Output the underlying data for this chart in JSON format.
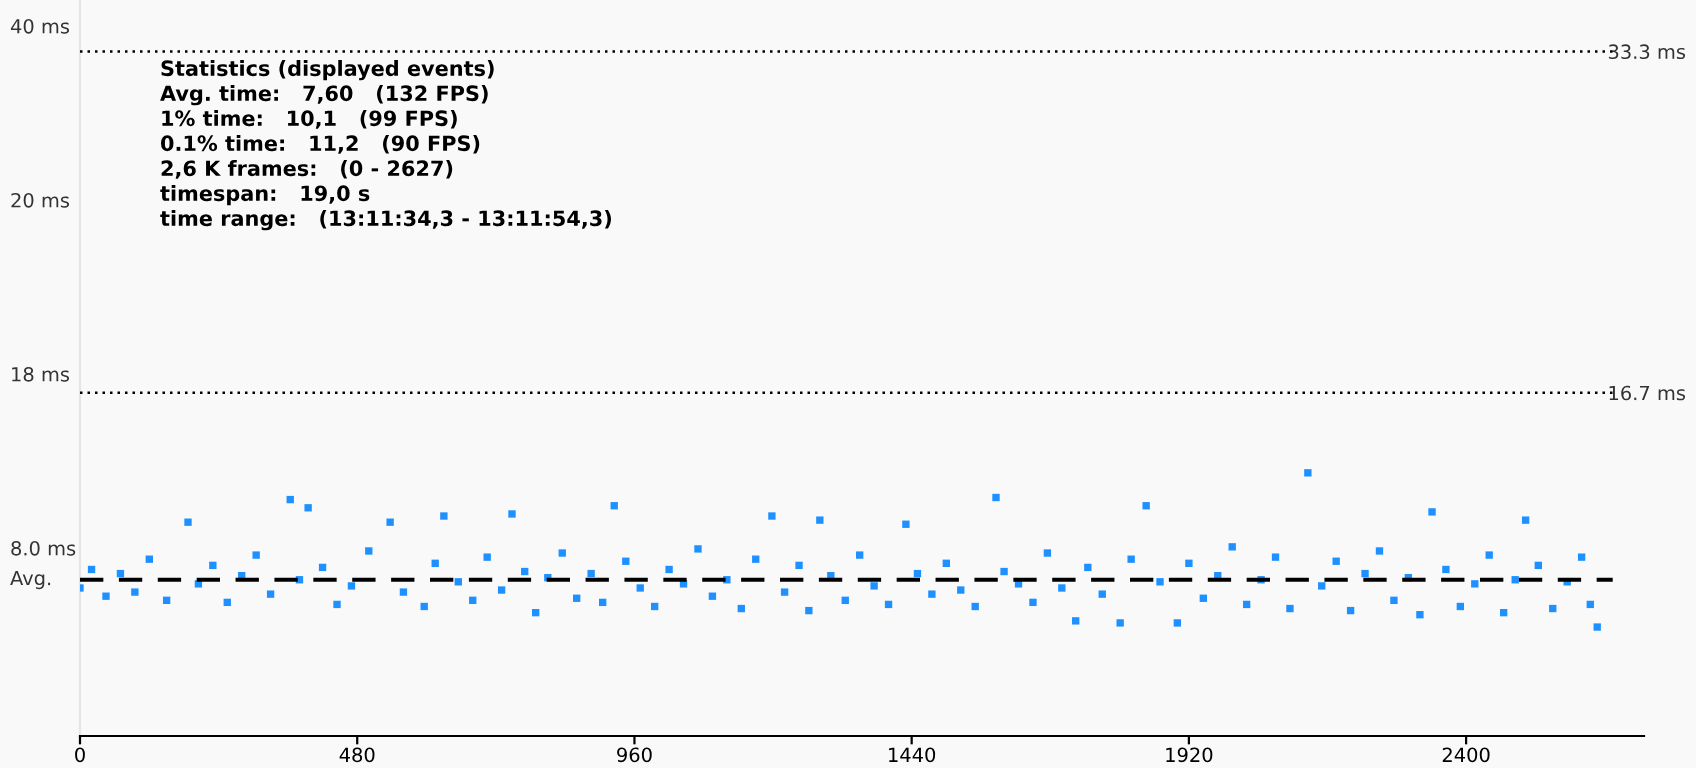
{
  "chart_data": {
    "type": "scatter",
    "marker": "square",
    "grid": false,
    "xlim": [
      0,
      2708
    ],
    "xticks": [
      0,
      480,
      960,
      1440,
      1920,
      2400
    ],
    "ylim": [
      0,
      35.8
    ],
    "yticks": [
      {
        "value": 33.3,
        "label": "33.3 ms"
      },
      {
        "value": 16.7,
        "label": "16.7 ms"
      }
    ],
    "ref_lines": [
      {
        "axis": "y",
        "value": 33.3,
        "line_style": "dotted",
        "color": "#000000"
      },
      {
        "axis": "y",
        "value": 16.7,
        "line_style": "dotted",
        "color": "#000000"
      },
      {
        "axis": "y",
        "value": 7.6,
        "label": "Avg.",
        "line_style": "dashed",
        "color": "#000000"
      }
    ],
    "annotations": [
      "40 ms",
      "20 ms",
      "18 ms",
      "8.0 ms",
      "Statistics (displayed events)",
      "Avg. time:   7,60   (132 FPS)",
      "1% time:   10,1   (99 FPS)",
      "0.1% time:   11,2   (90 FPS)",
      "2,6 K frames:   (0 - 2627)",
      "timespan:   19,0 s",
      "time range:   (13:11:34,3 - 13:11:54,3)"
    ],
    "series": [
      {
        "color": "#1e90ff",
        "x": [
          0,
          20,
          45,
          70,
          95,
          120,
          150,
          187,
          205,
          230,
          255,
          280,
          305,
          330,
          364,
          380,
          395,
          420,
          445,
          470,
          500,
          537,
          560,
          596,
          615,
          630,
          655,
          680,
          705,
          730,
          748,
          770,
          789,
          810,
          835,
          860,
          885,
          905,
          925,
          945,
          970,
          995,
          1020,
          1045,
          1070,
          1095,
          1120,
          1145,
          1170,
          1198,
          1220,
          1245,
          1262,
          1281,
          1300,
          1325,
          1350,
          1375,
          1400,
          1430,
          1450,
          1475,
          1500,
          1525,
          1550,
          1586,
          1600,
          1625,
          1650,
          1675,
          1700,
          1724,
          1745,
          1770,
          1801,
          1820,
          1846,
          1870,
          1900,
          1920,
          1945,
          1970,
          1995,
          2020,
          2045,
          2070,
          2095,
          2126,
          2150,
          2175,
          2200,
          2225,
          2250,
          2275,
          2300,
          2320,
          2341,
          2365,
          2390,
          2415,
          2440,
          2465,
          2485,
          2503,
          2525,
          2550,
          2575,
          2600,
          2615,
          2627
        ],
        "values": [
          7.2,
          8.1,
          6.8,
          7.9,
          7.0,
          8.6,
          6.6,
          10.4,
          7.4,
          8.3,
          6.5,
          7.8,
          8.8,
          6.9,
          11.5,
          7.6,
          11.1,
          8.2,
          6.4,
          7.3,
          9.0,
          10.4,
          7.0,
          6.3,
          8.4,
          10.7,
          7.5,
          6.6,
          8.7,
          7.1,
          10.8,
          8.0,
          6.0,
          7.7,
          8.9,
          6.7,
          7.9,
          6.5,
          11.2,
          8.5,
          7.2,
          6.3,
          8.1,
          7.4,
          9.1,
          6.8,
          7.6,
          6.2,
          8.6,
          10.7,
          7.0,
          8.3,
          6.1,
          10.5,
          7.8,
          6.6,
          8.8,
          7.3,
          6.4,
          10.3,
          7.9,
          6.9,
          8.4,
          7.1,
          6.3,
          11.6,
          8.0,
          7.4,
          6.5,
          8.9,
          7.2,
          5.6,
          8.2,
          6.9,
          5.5,
          8.6,
          11.2,
          7.5,
          5.5,
          8.4,
          6.7,
          7.8,
          9.2,
          6.4,
          7.6,
          8.7,
          6.2,
          12.8,
          7.3,
          8.5,
          6.1,
          7.9,
          9.0,
          6.6,
          7.7,
          5.9,
          10.9,
          8.1,
          6.3,
          7.4,
          8.8,
          6.0,
          7.6,
          10.5,
          8.3,
          6.2,
          7.5,
          8.7,
          6.4,
          5.3
        ]
      }
    ]
  }
}
